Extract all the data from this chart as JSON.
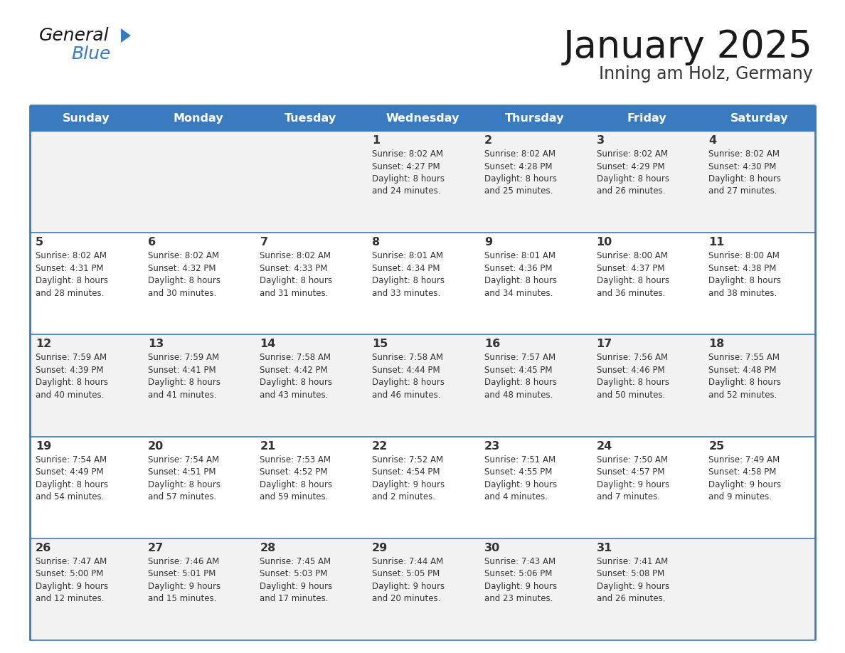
{
  "title": "January 2025",
  "subtitle": "Inning am Holz, Germany",
  "header_color": "#3a7bbf",
  "header_text_color": "#ffffff",
  "cell_bg_even": "#f2f2f2",
  "cell_bg_odd": "#ffffff",
  "border_color": "#3a7bbf",
  "text_color": "#333333",
  "days_of_week": [
    "Sunday",
    "Monday",
    "Tuesday",
    "Wednesday",
    "Thursday",
    "Friday",
    "Saturday"
  ],
  "calendar_data": [
    [
      {
        "day": "",
        "info": ""
      },
      {
        "day": "",
        "info": ""
      },
      {
        "day": "",
        "info": ""
      },
      {
        "day": "1",
        "info": "Sunrise: 8:02 AM\nSunset: 4:27 PM\nDaylight: 8 hours\nand 24 minutes."
      },
      {
        "day": "2",
        "info": "Sunrise: 8:02 AM\nSunset: 4:28 PM\nDaylight: 8 hours\nand 25 minutes."
      },
      {
        "day": "3",
        "info": "Sunrise: 8:02 AM\nSunset: 4:29 PM\nDaylight: 8 hours\nand 26 minutes."
      },
      {
        "day": "4",
        "info": "Sunrise: 8:02 AM\nSunset: 4:30 PM\nDaylight: 8 hours\nand 27 minutes."
      }
    ],
    [
      {
        "day": "5",
        "info": "Sunrise: 8:02 AM\nSunset: 4:31 PM\nDaylight: 8 hours\nand 28 minutes."
      },
      {
        "day": "6",
        "info": "Sunrise: 8:02 AM\nSunset: 4:32 PM\nDaylight: 8 hours\nand 30 minutes."
      },
      {
        "day": "7",
        "info": "Sunrise: 8:02 AM\nSunset: 4:33 PM\nDaylight: 8 hours\nand 31 minutes."
      },
      {
        "day": "8",
        "info": "Sunrise: 8:01 AM\nSunset: 4:34 PM\nDaylight: 8 hours\nand 33 minutes."
      },
      {
        "day": "9",
        "info": "Sunrise: 8:01 AM\nSunset: 4:36 PM\nDaylight: 8 hours\nand 34 minutes."
      },
      {
        "day": "10",
        "info": "Sunrise: 8:00 AM\nSunset: 4:37 PM\nDaylight: 8 hours\nand 36 minutes."
      },
      {
        "day": "11",
        "info": "Sunrise: 8:00 AM\nSunset: 4:38 PM\nDaylight: 8 hours\nand 38 minutes."
      }
    ],
    [
      {
        "day": "12",
        "info": "Sunrise: 7:59 AM\nSunset: 4:39 PM\nDaylight: 8 hours\nand 40 minutes."
      },
      {
        "day": "13",
        "info": "Sunrise: 7:59 AM\nSunset: 4:41 PM\nDaylight: 8 hours\nand 41 minutes."
      },
      {
        "day": "14",
        "info": "Sunrise: 7:58 AM\nSunset: 4:42 PM\nDaylight: 8 hours\nand 43 minutes."
      },
      {
        "day": "15",
        "info": "Sunrise: 7:58 AM\nSunset: 4:44 PM\nDaylight: 8 hours\nand 46 minutes."
      },
      {
        "day": "16",
        "info": "Sunrise: 7:57 AM\nSunset: 4:45 PM\nDaylight: 8 hours\nand 48 minutes."
      },
      {
        "day": "17",
        "info": "Sunrise: 7:56 AM\nSunset: 4:46 PM\nDaylight: 8 hours\nand 50 minutes."
      },
      {
        "day": "18",
        "info": "Sunrise: 7:55 AM\nSunset: 4:48 PM\nDaylight: 8 hours\nand 52 minutes."
      }
    ],
    [
      {
        "day": "19",
        "info": "Sunrise: 7:54 AM\nSunset: 4:49 PM\nDaylight: 8 hours\nand 54 minutes."
      },
      {
        "day": "20",
        "info": "Sunrise: 7:54 AM\nSunset: 4:51 PM\nDaylight: 8 hours\nand 57 minutes."
      },
      {
        "day": "21",
        "info": "Sunrise: 7:53 AM\nSunset: 4:52 PM\nDaylight: 8 hours\nand 59 minutes."
      },
      {
        "day": "22",
        "info": "Sunrise: 7:52 AM\nSunset: 4:54 PM\nDaylight: 9 hours\nand 2 minutes."
      },
      {
        "day": "23",
        "info": "Sunrise: 7:51 AM\nSunset: 4:55 PM\nDaylight: 9 hours\nand 4 minutes."
      },
      {
        "day": "24",
        "info": "Sunrise: 7:50 AM\nSunset: 4:57 PM\nDaylight: 9 hours\nand 7 minutes."
      },
      {
        "day": "25",
        "info": "Sunrise: 7:49 AM\nSunset: 4:58 PM\nDaylight: 9 hours\nand 9 minutes."
      }
    ],
    [
      {
        "day": "26",
        "info": "Sunrise: 7:47 AM\nSunset: 5:00 PM\nDaylight: 9 hours\nand 12 minutes."
      },
      {
        "day": "27",
        "info": "Sunrise: 7:46 AM\nSunset: 5:01 PM\nDaylight: 9 hours\nand 15 minutes."
      },
      {
        "day": "28",
        "info": "Sunrise: 7:45 AM\nSunset: 5:03 PM\nDaylight: 9 hours\nand 17 minutes."
      },
      {
        "day": "29",
        "info": "Sunrise: 7:44 AM\nSunset: 5:05 PM\nDaylight: 9 hours\nand 20 minutes."
      },
      {
        "day": "30",
        "info": "Sunrise: 7:43 AM\nSunset: 5:06 PM\nDaylight: 9 hours\nand 23 minutes."
      },
      {
        "day": "31",
        "info": "Sunrise: 7:41 AM\nSunset: 5:08 PM\nDaylight: 9 hours\nand 26 minutes."
      },
      {
        "day": "",
        "info": ""
      }
    ]
  ]
}
